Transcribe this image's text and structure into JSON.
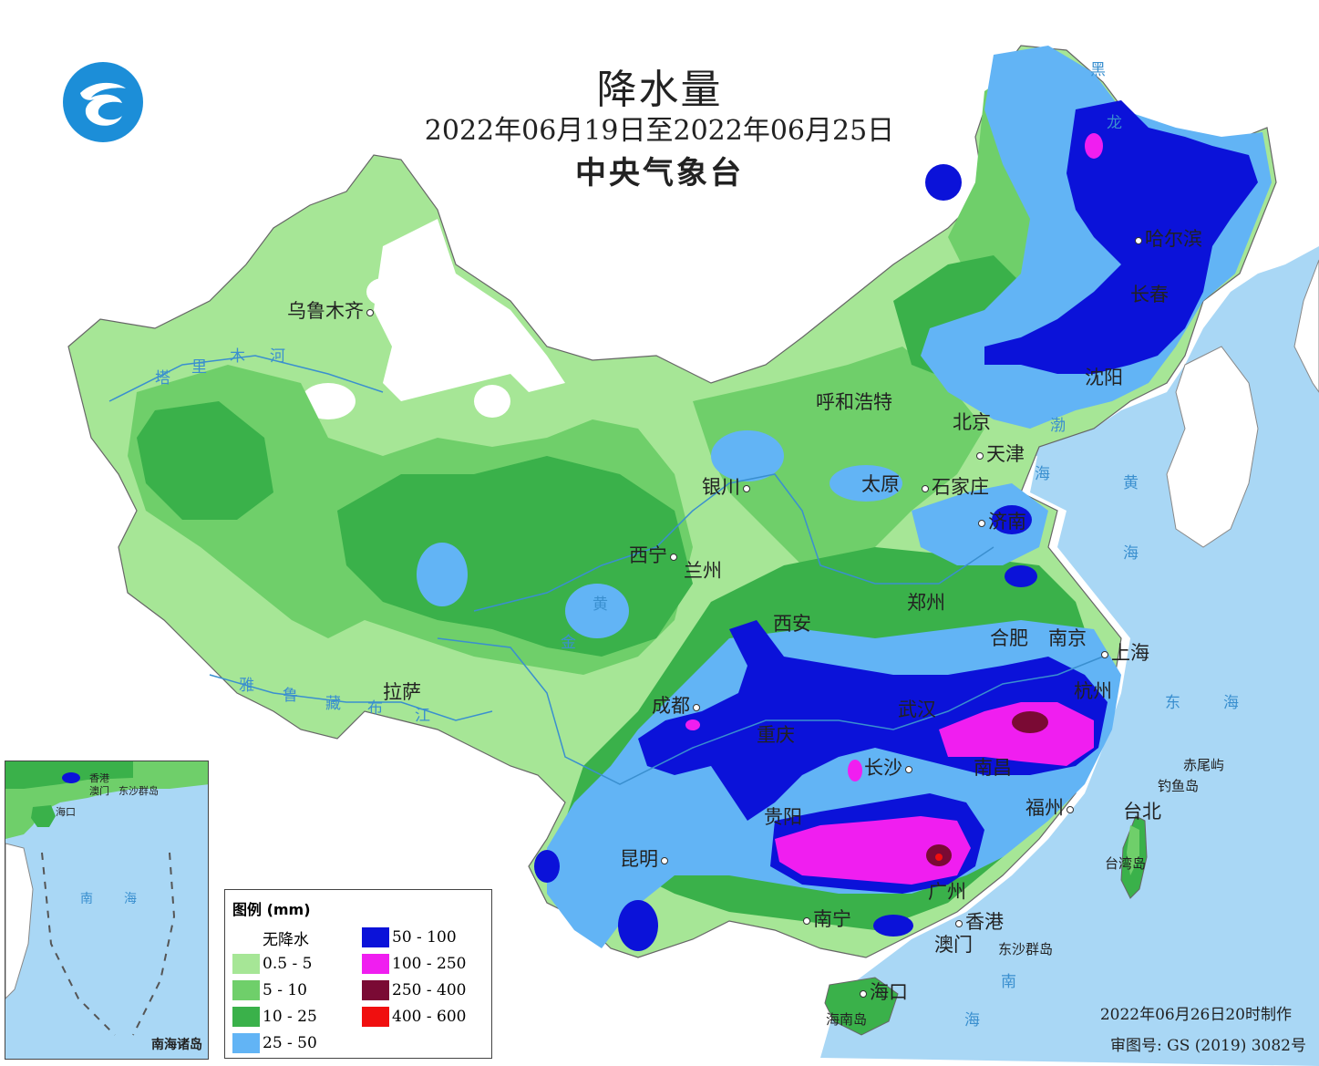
{
  "title": "降水量",
  "date_range": "2022年06月19日至2022年06月25日",
  "organization": "中央气象台",
  "colors": {
    "sea": "#a9d7f5",
    "none": "#ffffff",
    "c05_5": "#a6e696",
    "c5_10": "#6fcf6a",
    "c10_25": "#3ab14a",
    "c25_50": "#62b4f5",
    "c50_100": "#0b12d9",
    "c100_250": "#f01ef0",
    "c250_400": "#7a0a34",
    "c400_600": "#f00f0f",
    "river": "#3a8fcf",
    "border": "#666666"
  },
  "legend": {
    "title": "图例 (mm)",
    "items": [
      {
        "label": "无降水",
        "color": "#ffffff"
      },
      {
        "label": "0.5 - 5",
        "color": "#a6e696"
      },
      {
        "label": "5 - 10",
        "color": "#6fcf6a"
      },
      {
        "label": "10 - 25",
        "color": "#3ab14a"
      },
      {
        "label": "25 - 50",
        "color": "#62b4f5"
      },
      {
        "label": "50 - 100",
        "color": "#0b12d9"
      },
      {
        "label": "100 - 250",
        "color": "#f01ef0"
      },
      {
        "label": "250 - 400",
        "color": "#7a0a34"
      },
      {
        "label": "400 - 600",
        "color": "#f00f0f"
      }
    ]
  },
  "cities": {
    "urumqi": "乌鲁木齐",
    "hohhot": "呼和浩特",
    "beijing": "北京",
    "tianjin": "天津",
    "shenyang": "沈阳",
    "changchun": "长春",
    "harbin": "哈尔滨",
    "yinchuan": "银川",
    "taiyuan": "太原",
    "shijiazhuang": "石家庄",
    "jinan": "济南",
    "xining": "西宁",
    "lanzhou": "兰州",
    "zhengzhou": "郑州",
    "xian": "西安",
    "hefei": "合肥",
    "nanjing": "南京",
    "shanghai": "上海",
    "hangzhou": "杭州",
    "chengdu": "成都",
    "chongqing": "重庆",
    "wuhan": "武汉",
    "changsha": "长沙",
    "nanchang": "南昌",
    "fuzhou": "福州",
    "taipei": "台北",
    "lhasa": "拉萨",
    "kunming": "昆明",
    "guiyang": "贵阳",
    "nanning": "南宁",
    "guangzhou": "广州",
    "hongkong": "香港",
    "macau": "澳门",
    "haikou": "海口"
  },
  "water_labels": {
    "bohai": "渤",
    "huanghai_1": "黄",
    "huanghai_2": "海",
    "bohai_2": "海",
    "donghai_1": "东",
    "donghai_2": "海",
    "nanhai_1": "南",
    "nanhai_2": "海",
    "tarim_1": "塔",
    "tarim_2": "里",
    "tarim_3": "木",
    "tarim_4": "河",
    "heilong_1": "黑",
    "heilong_2": "龙",
    "huang_river": "黄",
    "jinsha": "金",
    "yarlung_1": "雅",
    "yarlung_2": "鲁",
    "yarlung_3": "藏",
    "yarlung_4": "布",
    "yarlung_5": "江"
  },
  "islands": {
    "taiwan": "台湾岛",
    "hainan": "海南岛",
    "chiwei": "赤尾屿",
    "diaoyu": "钓鱼岛",
    "dongsha": "东沙群岛"
  },
  "inset": {
    "caption": "南海诸岛",
    "hongkong": "香港",
    "macau": "澳门",
    "dongsha": "东沙群岛",
    "haikou": "海口",
    "sea_1": "南",
    "sea_2": "海"
  },
  "footer": {
    "made": "2022年06月26日20时制作",
    "review": "审图号: GS (2019) 3082号"
  }
}
